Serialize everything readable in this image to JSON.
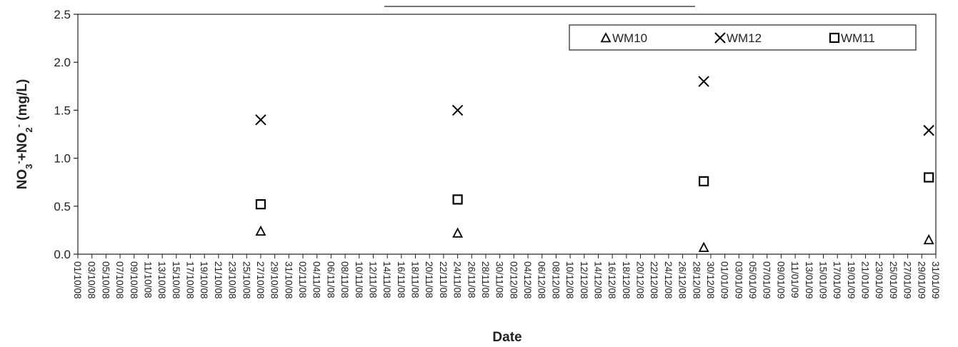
{
  "chart_data": {
    "type": "scatter",
    "title": "",
    "xlabel": "Date",
    "ylabel_parts": {
      "no3": "NO",
      "no3_sub": "3",
      "no3_sup": "-",
      "plus": "+",
      "no2": "NO",
      "no2_sub": "2",
      "no2_sup": "-",
      "unit": " (mg/L)"
    },
    "ylim": [
      0,
      2.5
    ],
    "yticks": [
      "0.0",
      "0.5",
      "1.0",
      "1.5",
      "2.0",
      "2.5"
    ],
    "xlim": [
      "2008-10-01",
      "2009-01-31"
    ],
    "xtick_labels": [
      "01/10/08",
      "03/10/08",
      "05/10/08",
      "07/10/08",
      "09/10/08",
      "11/10/08",
      "13/10/08",
      "15/10/08",
      "17/10/08",
      "19/10/08",
      "21/10/08",
      "23/10/08",
      "25/10/08",
      "27/10/08",
      "29/10/08",
      "31/10/08",
      "02/11/08",
      "04/11/08",
      "06/11/08",
      "08/11/08",
      "10/11/08",
      "12/11/08",
      "14/11/08",
      "16/11/08",
      "18/11/08",
      "20/11/08",
      "22/11/08",
      "24/11/08",
      "26/11/08",
      "28/11/08",
      "30/11/08",
      "02/12/08",
      "04/12/08",
      "06/12/08",
      "08/12/08",
      "10/12/08",
      "12/12/08",
      "14/12/08",
      "16/12/08",
      "18/12/08",
      "20/12/08",
      "22/12/08",
      "24/12/08",
      "26/12/08",
      "28/12/08",
      "30/12/08",
      "01/01/09",
      "03/01/09",
      "05/01/09",
      "07/01/09",
      "09/01/09",
      "11/01/09",
      "13/01/09",
      "15/01/09",
      "17/01/09",
      "19/01/09",
      "21/01/09",
      "23/01/09",
      "25/01/09",
      "27/01/09",
      "29/01/09",
      "31/01/09"
    ],
    "grid": false,
    "legend_position": "top-right",
    "series": [
      {
        "name": "WM10",
        "marker": "triangle",
        "color": "#000000",
        "x": [
          "2008-10-27",
          "2008-11-24",
          "2008-12-29",
          "2009-01-30"
        ],
        "y": [
          0.24,
          0.22,
          0.07,
          0.15
        ]
      },
      {
        "name": "WM12",
        "marker": "x",
        "color": "#000000",
        "x": [
          "2008-10-27",
          "2008-11-24",
          "2008-12-29",
          "2009-01-30"
        ],
        "y": [
          1.4,
          1.5,
          1.8,
          1.29
        ]
      },
      {
        "name": "WM11",
        "marker": "square",
        "color": "#000000",
        "x": [
          "2008-10-27",
          "2008-11-24",
          "2008-12-29",
          "2009-01-30"
        ],
        "y": [
          0.52,
          0.57,
          0.76,
          0.8
        ]
      }
    ]
  }
}
